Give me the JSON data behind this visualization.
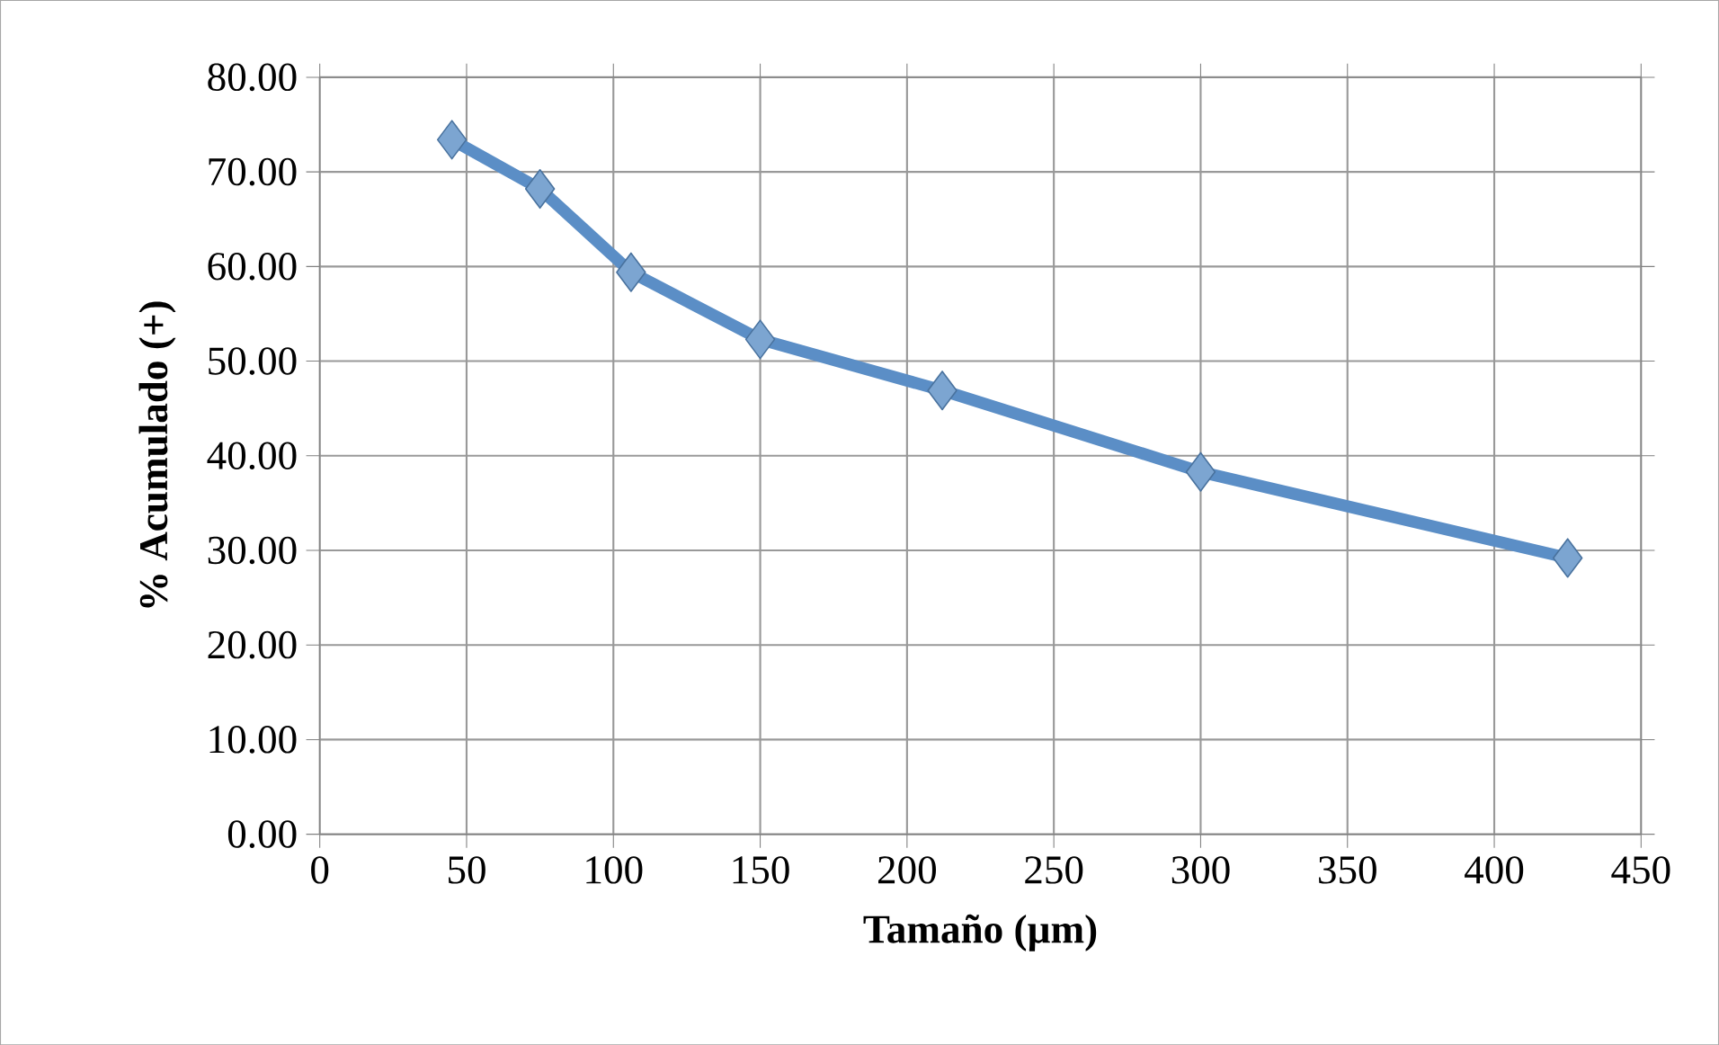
{
  "chart_data": {
    "type": "line",
    "xlabel": "Tamaño (µm)",
    "ylabel": "% Acumulado (+)",
    "x": [
      45,
      75,
      106,
      150,
      212,
      300,
      425
    ],
    "series": [
      {
        "color": "#5b8ec6",
        "values": [
          73.4,
          68.2,
          59.4,
          52.3,
          46.9,
          38.3,
          29.2
        ]
      }
    ],
    "xlim": [
      0,
      450
    ],
    "xticks": [
      0,
      50,
      100,
      150,
      200,
      250,
      300,
      350,
      400,
      450
    ],
    "ylim": [
      0,
      80
    ],
    "yticks": [
      {
        "value": 0,
        "label": "0.00"
      },
      {
        "value": 10,
        "label": "10.00"
      },
      {
        "value": 20,
        "label": "20.00"
      },
      {
        "value": 30,
        "label": "30.00"
      },
      {
        "value": 40,
        "label": "40.00"
      },
      {
        "value": 50,
        "label": "50.00"
      },
      {
        "value": 60,
        "label": "60.00"
      },
      {
        "value": 70,
        "label": "70.00"
      },
      {
        "value": 80,
        "label": "80.00"
      }
    ],
    "grid": true,
    "marker": "diamond",
    "line_style": "solid"
  }
}
